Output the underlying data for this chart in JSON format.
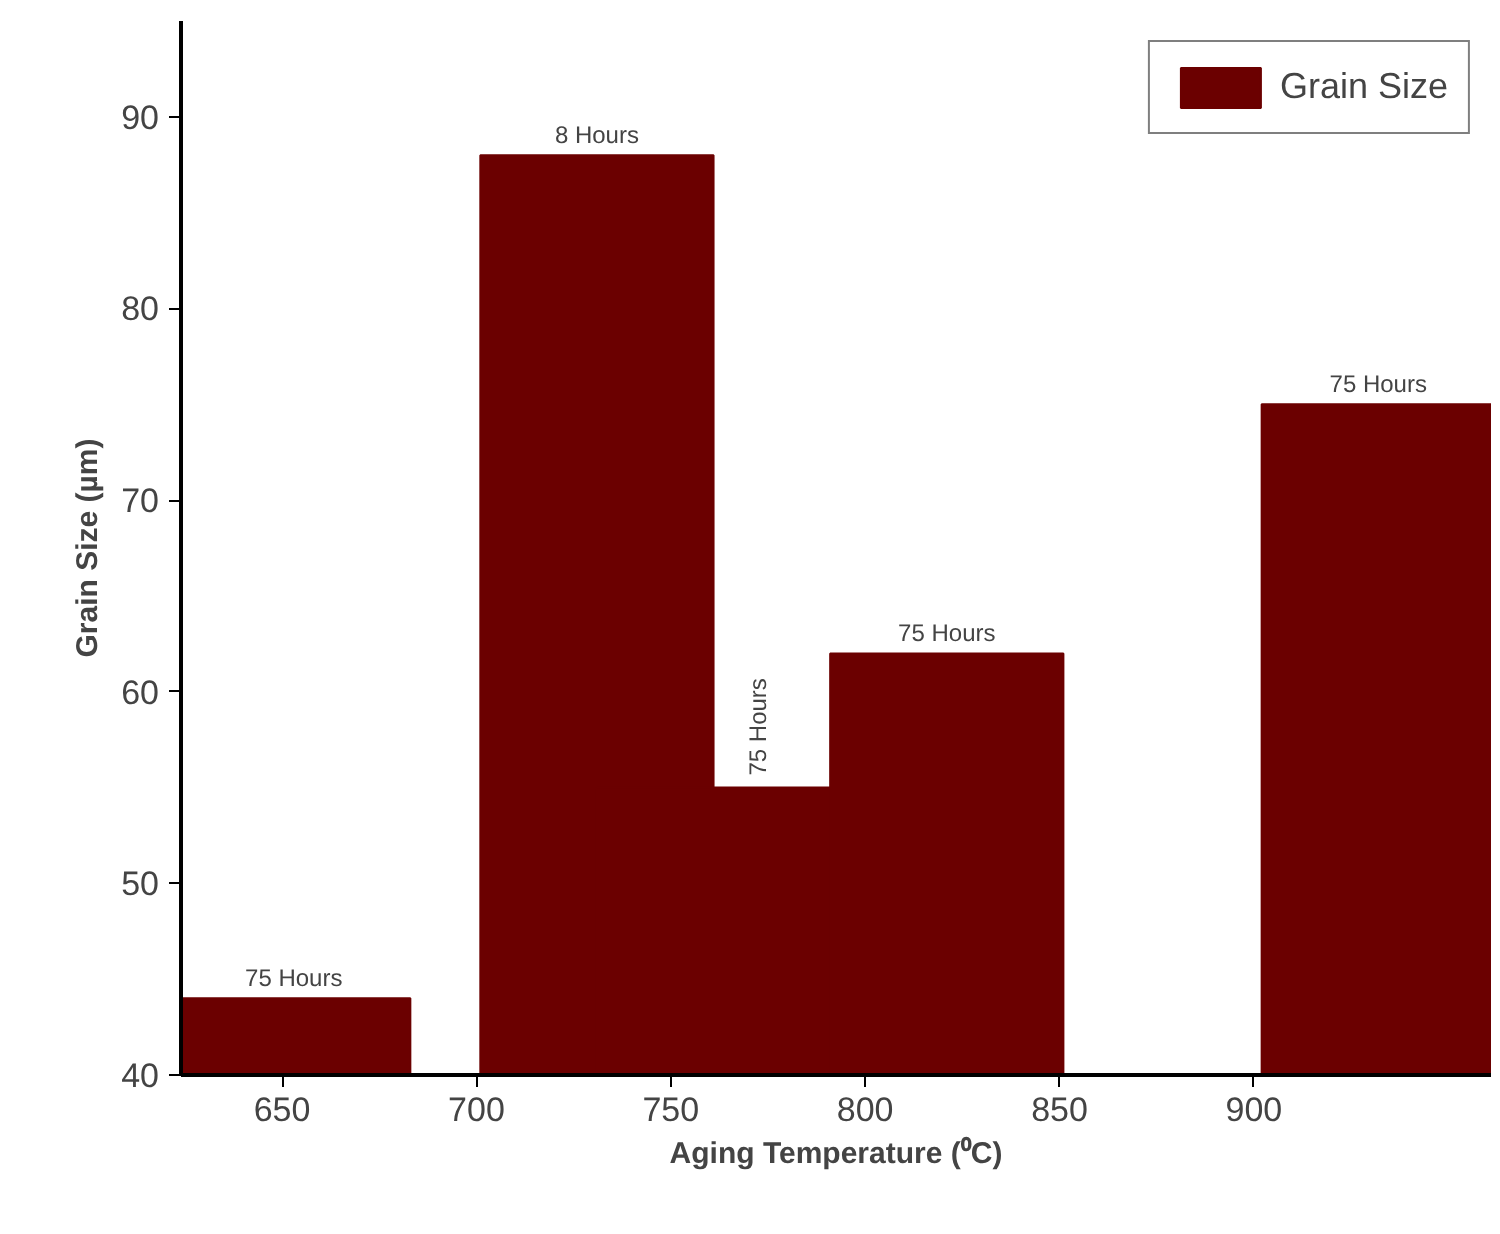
{
  "chart_data": {
    "type": "bar",
    "xlabel": "Aging Temperature (⁰C)",
    "ylabel": "Grain Size (µm)",
    "x": [
      653,
      731,
      761,
      821,
      932
    ],
    "series": [
      {
        "name": "Grain Size",
        "color": "#6b0000",
        "values": [
          44,
          88,
          55,
          62,
          75
        ]
      }
    ],
    "xlim": [
      624,
      961
    ],
    "ylim": [
      40,
      95
    ],
    "xticks": [
      650,
      700,
      750,
      800,
      850,
      900
    ],
    "yticks": [
      40,
      50,
      60,
      70,
      80,
      90
    ],
    "annotations": [
      {
        "text": "75 Hours",
        "x": 653,
        "y": 44
      },
      {
        "text": "8 Hours",
        "x": 731,
        "y": 88
      },
      {
        "text": "75 Hours",
        "x": 761,
        "y": 55
      },
      {
        "text": "75 Hours",
        "x": 821,
        "y": 62
      },
      {
        "text": "75 Hours",
        "x": 932,
        "y": 75
      }
    ],
    "legend": "top right",
    "grid": false
  }
}
